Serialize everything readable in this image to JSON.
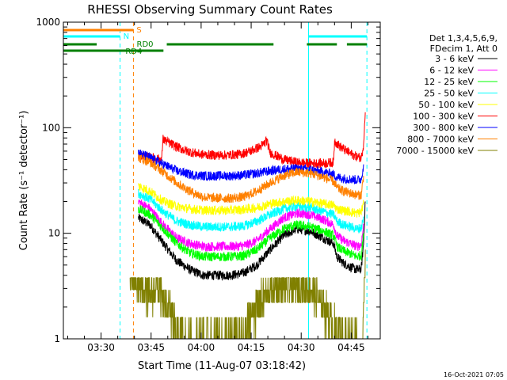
{
  "chart_data": {
    "type": "line",
    "title": "RHESSI Observing Summary Count Rates",
    "xlabel": "Start Time (11-Aug-07 03:18:42)",
    "ylabel": "Count Rate (s⁻¹ detector⁻¹)",
    "y_scale": "log",
    "ylim": [
      1,
      1000
    ],
    "xlim_minutes": [
      0,
      95
    ],
    "x_ticks": [
      {
        "minute": 11.3,
        "label": "03:30"
      },
      {
        "minute": 26.3,
        "label": "03:45"
      },
      {
        "minute": 41.3,
        "label": "04:00"
      },
      {
        "minute": 56.3,
        "label": "04:15"
      },
      {
        "minute": 71.3,
        "label": "04:30"
      },
      {
        "minute": 86.3,
        "label": "04:45"
      }
    ],
    "y_ticks": [
      {
        "value": 1,
        "label": "1"
      },
      {
        "value": 10,
        "label": "10"
      },
      {
        "value": 100,
        "label": "100"
      },
      {
        "value": 1000,
        "label": "1000"
      }
    ],
    "legend_header": [
      "Det 1,3,4,5,6,9,",
      "FDecim 1, Att 0"
    ],
    "legend_position": "right",
    "series": [
      {
        "name": "3 - 6 keV",
        "color": "#000000",
        "points": [
          [
            22.5,
            14
          ],
          [
            26,
            12
          ],
          [
            30,
            8
          ],
          [
            34,
            5.5
          ],
          [
            38,
            4.5
          ],
          [
            42,
            4
          ],
          [
            46,
            4
          ],
          [
            50,
            4
          ],
          [
            54,
            4.2
          ],
          [
            58,
            5
          ],
          [
            62,
            7
          ],
          [
            66,
            9.5
          ],
          [
            70,
            11
          ],
          [
            74,
            10.5
          ],
          [
            78,
            9
          ],
          [
            81,
            8
          ],
          [
            82,
            6
          ],
          [
            84,
            5.2
          ],
          [
            86,
            4.8
          ],
          [
            88,
            4.5
          ],
          [
            89.3,
            4.6
          ],
          [
            90,
            8
          ],
          [
            90.5,
            20
          ]
        ]
      },
      {
        "name": "6 - 12 keV",
        "color": "#ff00ff",
        "points": [
          [
            22.5,
            20
          ],
          [
            26,
            17
          ],
          [
            30,
            12
          ],
          [
            34,
            9
          ],
          [
            38,
            8
          ],
          [
            42,
            7.5
          ],
          [
            46,
            7.5
          ],
          [
            50,
            7.5
          ],
          [
            54,
            7.6
          ],
          [
            58,
            8.5
          ],
          [
            62,
            11
          ],
          [
            66,
            14
          ],
          [
            70,
            15.5
          ],
          [
            74,
            15
          ],
          [
            78,
            13.5
          ],
          [
            81,
            12
          ],
          [
            82,
            9.5
          ],
          [
            84,
            8.5
          ],
          [
            86,
            8
          ],
          [
            88,
            7.5
          ],
          [
            89.3,
            7.8
          ],
          [
            90,
            12
          ]
        ]
      },
      {
        "name": "12 - 25 keV",
        "color": "#00ff00",
        "points": [
          [
            22.5,
            17
          ],
          [
            26,
            15
          ],
          [
            30,
            11
          ],
          [
            34,
            8
          ],
          [
            38,
            6.5
          ],
          [
            42,
            6
          ],
          [
            46,
            6
          ],
          [
            50,
            6
          ],
          [
            54,
            6.1
          ],
          [
            58,
            7
          ],
          [
            62,
            9
          ],
          [
            66,
            11
          ],
          [
            70,
            12
          ],
          [
            74,
            11.5
          ],
          [
            78,
            10.5
          ],
          [
            81,
            9.5
          ],
          [
            82,
            7.5
          ],
          [
            84,
            6.8
          ],
          [
            86,
            6.4
          ],
          [
            88,
            6
          ],
          [
            89.3,
            6.2
          ],
          [
            90,
            10
          ]
        ]
      },
      {
        "name": "25 - 50 keV",
        "color": "#00ffff",
        "points": [
          [
            22.5,
            24
          ],
          [
            26,
            21
          ],
          [
            30,
            16
          ],
          [
            34,
            13
          ],
          [
            38,
            12
          ],
          [
            42,
            11.5
          ],
          [
            46,
            11.5
          ],
          [
            50,
            11.5
          ],
          [
            54,
            11.7
          ],
          [
            58,
            13
          ],
          [
            62,
            15
          ],
          [
            66,
            17
          ],
          [
            70,
            18
          ],
          [
            74,
            17.5
          ],
          [
            78,
            16
          ],
          [
            81,
            15
          ],
          [
            82,
            13
          ],
          [
            84,
            12
          ],
          [
            86,
            11.5
          ],
          [
            88,
            11
          ],
          [
            89.3,
            11.2
          ],
          [
            90,
            14
          ]
        ]
      },
      {
        "name": "50 - 100 keV",
        "color": "#ffff00",
        "points": [
          [
            22.5,
            28
          ],
          [
            26,
            25
          ],
          [
            30,
            20
          ],
          [
            34,
            18
          ],
          [
            38,
            17
          ],
          [
            42,
            16.5
          ],
          [
            46,
            16.5
          ],
          [
            50,
            16.5
          ],
          [
            54,
            16.8
          ],
          [
            58,
            17.5
          ],
          [
            62,
            19
          ],
          [
            66,
            20
          ],
          [
            70,
            20.5
          ],
          [
            74,
            20
          ],
          [
            78,
            19
          ],
          [
            81,
            18.5
          ],
          [
            82,
            17
          ],
          [
            84,
            16.5
          ],
          [
            86,
            16
          ],
          [
            88,
            15.5
          ],
          [
            89.3,
            16
          ],
          [
            90,
            19
          ]
        ]
      },
      {
        "name": "100 - 300 keV",
        "color": "#ff0000",
        "points": [
          [
            22.5,
            55
          ],
          [
            26,
            52
          ],
          [
            29.5,
            50
          ],
          [
            29.8,
            78
          ],
          [
            33,
            68
          ],
          [
            37,
            60
          ],
          [
            41,
            56
          ],
          [
            45,
            55
          ],
          [
            49,
            55
          ],
          [
            53,
            56
          ],
          [
            56,
            60
          ],
          [
            59,
            66
          ],
          [
            60.5,
            72
          ],
          [
            60.8,
            78
          ],
          [
            62,
            58
          ],
          [
            66,
            50
          ],
          [
            70,
            47
          ],
          [
            74,
            46
          ],
          [
            78,
            46
          ],
          [
            81,
            47
          ],
          [
            81.3,
            75
          ],
          [
            83,
            66
          ],
          [
            86,
            57
          ],
          [
            88,
            53
          ],
          [
            89.3,
            52
          ],
          [
            90,
            70
          ],
          [
            90.5,
            140
          ]
        ]
      },
      {
        "name": "300 - 800 keV",
        "color": "#0000ff",
        "points": [
          [
            22.5,
            58
          ],
          [
            26,
            52
          ],
          [
            30,
            45
          ],
          [
            34,
            39
          ],
          [
            38,
            36
          ],
          [
            42,
            35
          ],
          [
            46,
            35
          ],
          [
            50,
            35
          ],
          [
            54,
            35.5
          ],
          [
            58,
            37
          ],
          [
            62,
            39
          ],
          [
            66,
            40.5
          ],
          [
            70,
            41
          ],
          [
            74,
            40
          ],
          [
            78,
            38
          ],
          [
            81,
            36
          ],
          [
            82,
            34
          ],
          [
            84,
            33
          ],
          [
            86,
            32.5
          ],
          [
            88,
            32
          ],
          [
            89.3,
            32.5
          ],
          [
            90,
            45
          ]
        ]
      },
      {
        "name": "800 - 7000 keV",
        "color": "#ff8000",
        "points": [
          [
            22.5,
            52
          ],
          [
            26,
            47
          ],
          [
            30,
            38
          ],
          [
            34,
            30
          ],
          [
            38,
            25
          ],
          [
            42,
            22
          ],
          [
            46,
            21.5
          ],
          [
            50,
            21.5
          ],
          [
            54,
            22
          ],
          [
            58,
            25
          ],
          [
            62,
            30
          ],
          [
            66,
            35
          ],
          [
            70,
            38
          ],
          [
            74,
            37
          ],
          [
            78,
            34
          ],
          [
            81,
            31
          ],
          [
            82,
            27
          ],
          [
            84,
            25
          ],
          [
            86,
            24
          ],
          [
            88,
            23
          ],
          [
            89.3,
            23
          ],
          [
            90,
            35
          ]
        ]
      },
      {
        "name": "7000 - 15000 keV",
        "color": "#808000",
        "points": [
          [
            20,
            3.8
          ],
          [
            22,
            3.2
          ],
          [
            24,
            3
          ],
          [
            26,
            2.5
          ],
          [
            28,
            3.3
          ],
          [
            30,
            2.2
          ],
          [
            32,
            1.8
          ],
          [
            34,
            1.2
          ],
          [
            36,
            1
          ],
          [
            54,
            1
          ],
          [
            56,
            1.6
          ],
          [
            58,
            2
          ],
          [
            60,
            2.4
          ],
          [
            62,
            2.8
          ],
          [
            66,
            3.1
          ],
          [
            70,
            3.2
          ],
          [
            74,
            3
          ],
          [
            76,
            2.5
          ],
          [
            78,
            2
          ],
          [
            80,
            1.5
          ],
          [
            82,
            1.2
          ],
          [
            84,
            1
          ],
          [
            89,
            1
          ],
          [
            90,
            1.6
          ],
          [
            90.5,
            7
          ]
        ]
      }
    ],
    "vertical_lines": [
      {
        "minute": 0,
        "color": "#00ffff",
        "style": "solid"
      },
      {
        "minute": 17,
        "color": "#00ffff",
        "style": "dashed"
      },
      {
        "minute": 21,
        "color": "#ff8000",
        "style": "dashed"
      },
      {
        "minute": 73.5,
        "color": "#00ffff",
        "style": "solid"
      },
      {
        "minute": 91,
        "color": "#00ffff",
        "style": "dashed"
      }
    ],
    "flags": [
      {
        "label": "S",
        "color": "#ff8000",
        "y_offset": 10,
        "segments": [
          [
            0,
            21
          ]
        ]
      },
      {
        "label": "N",
        "color": "#00ffff",
        "y_offset": 18,
        "segments": [
          [
            0,
            17
          ],
          [
            73.5,
            91
          ]
        ]
      },
      {
        "label": "RD0",
        "color": "#008000",
        "y_offset": 28,
        "segments": [
          [
            0,
            10
          ],
          [
            31,
            63
          ],
          [
            73,
            82
          ],
          [
            85,
            91
          ]
        ]
      },
      {
        "label": "RD4",
        "color": "#008000",
        "y_offset": 36,
        "segments": [
          [
            0,
            30
          ]
        ]
      }
    ]
  },
  "footer_timestamp": "16-Oct-2021 07:05"
}
